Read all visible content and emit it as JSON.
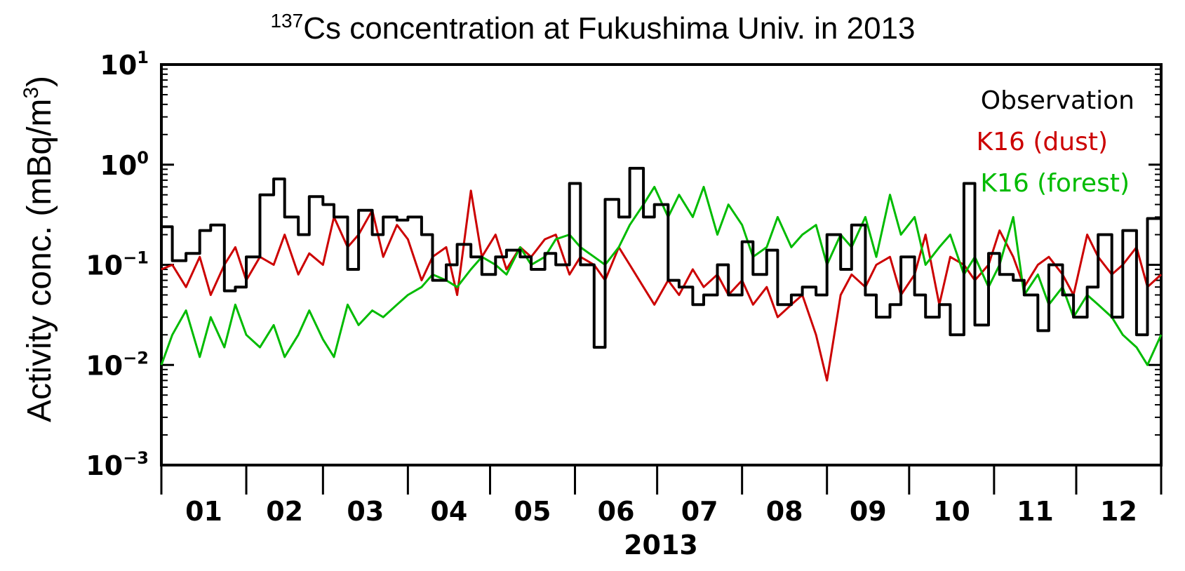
{
  "chart_data": {
    "type": "line",
    "title_prefix": "137",
    "title_main": "Cs concentration at Fukushima Univ. in 2013",
    "ylabel": "Activity conc. (mBq/m",
    "ylabel_sup": "3",
    "ylabel_close": ")",
    "xlabel": "2013",
    "y_scale": "log",
    "ylim": [
      0.001,
      10
    ],
    "y_ticks": [
      {
        "base": "10",
        "exp": "1",
        "value": 10
      },
      {
        "base": "10",
        "exp": "0",
        "value": 1
      },
      {
        "base": "10",
        "exp": "−1",
        "value": 0.1
      },
      {
        "base": "10",
        "exp": "−2",
        "value": 0.01
      },
      {
        "base": "10",
        "exp": "−3",
        "value": 0.001
      }
    ],
    "x_ticks": [
      "01",
      "02",
      "03",
      "04",
      "05",
      "06",
      "07",
      "08",
      "09",
      "10",
      "11",
      "12"
    ],
    "xlim_days": [
      0,
      365
    ],
    "legend_position": "top-right",
    "colors": {
      "observation": "#000000",
      "dust": "#cc0000",
      "forest": "#00bb00"
    },
    "series": [
      {
        "name": "Observation",
        "style": "step",
        "x": [
          0,
          4,
          9,
          14,
          18,
          23,
          27,
          31,
          36,
          41,
          45,
          50,
          54,
          59,
          63,
          68,
          72,
          77,
          81,
          86,
          90,
          95,
          99,
          104,
          108,
          113,
          117,
          122,
          126,
          131,
          135,
          140,
          144,
          149,
          153,
          158,
          162,
          167,
          171,
          176,
          180,
          185,
          189,
          194,
          198,
          203,
          207,
          212,
          216,
          221,
          225,
          230,
          234,
          239,
          243,
          248,
          252,
          257,
          261,
          266,
          270,
          275,
          279,
          284,
          288,
          293,
          297,
          302,
          306,
          311,
          315,
          320,
          324,
          329,
          333,
          338,
          342,
          347,
          351,
          356,
          360,
          365
        ],
        "values": [
          0.24,
          0.11,
          0.13,
          0.22,
          0.25,
          0.055,
          0.06,
          0.12,
          0.5,
          0.72,
          0.3,
          0.2,
          0.48,
          0.4,
          0.3,
          0.09,
          0.35,
          0.2,
          0.3,
          0.28,
          0.3,
          0.2,
          0.07,
          0.1,
          0.16,
          0.12,
          0.08,
          0.12,
          0.14,
          0.12,
          0.09,
          0.13,
          0.1,
          0.65,
          0.1,
          0.015,
          0.45,
          0.3,
          0.92,
          0.3,
          0.4,
          0.07,
          0.06,
          0.04,
          0.05,
          0.1,
          0.05,
          0.17,
          0.08,
          0.14,
          0.04,
          0.05,
          0.06,
          0.05,
          0.2,
          0.09,
          0.25,
          0.05,
          0.03,
          0.04,
          0.12,
          0.05,
          0.03,
          0.04,
          0.02,
          0.65,
          0.025,
          0.13,
          0.08,
          0.07,
          0.05,
          0.022,
          0.1,
          0.05,
          0.03,
          0.06,
          0.2,
          0.03,
          0.22,
          0.02,
          0.29,
          0.13
        ]
      },
      {
        "name": "K16 (dust)",
        "style": "line",
        "x": [
          0,
          4,
          9,
          14,
          18,
          23,
          27,
          31,
          36,
          41,
          45,
          50,
          54,
          59,
          63,
          68,
          72,
          77,
          81,
          86,
          90,
          95,
          99,
          104,
          108,
          113,
          117,
          122,
          126,
          131,
          135,
          140,
          144,
          149,
          153,
          158,
          162,
          167,
          171,
          176,
          180,
          185,
          189,
          194,
          198,
          203,
          207,
          212,
          216,
          221,
          225,
          230,
          234,
          239,
          243,
          248,
          252,
          257,
          261,
          266,
          270,
          275,
          279,
          284,
          288,
          293,
          297,
          302,
          306,
          311,
          315,
          320,
          324,
          329,
          333,
          338,
          342,
          347,
          351,
          356,
          360,
          365
        ],
        "values": [
          0.09,
          0.1,
          0.06,
          0.12,
          0.05,
          0.1,
          0.15,
          0.07,
          0.12,
          0.1,
          0.2,
          0.08,
          0.13,
          0.1,
          0.3,
          0.15,
          0.2,
          0.35,
          0.12,
          0.25,
          0.18,
          0.07,
          0.12,
          0.15,
          0.05,
          0.55,
          0.12,
          0.2,
          0.09,
          0.15,
          0.12,
          0.18,
          0.2,
          0.08,
          0.12,
          0.1,
          0.07,
          0.15,
          0.1,
          0.06,
          0.04,
          0.07,
          0.05,
          0.09,
          0.06,
          0.08,
          0.05,
          0.07,
          0.04,
          0.06,
          0.03,
          0.04,
          0.05,
          0.02,
          0.007,
          0.05,
          0.08,
          0.06,
          0.1,
          0.12,
          0.05,
          0.08,
          0.2,
          0.04,
          0.12,
          0.1,
          0.07,
          0.1,
          0.22,
          0.12,
          0.06,
          0.1,
          0.12,
          0.08,
          0.05,
          0.2,
          0.12,
          0.08,
          0.1,
          0.15,
          0.06,
          0.08
        ]
      },
      {
        "name": "K16 (forest)",
        "style": "line",
        "x": [
          0,
          4,
          9,
          14,
          18,
          23,
          27,
          31,
          36,
          41,
          45,
          50,
          54,
          59,
          63,
          68,
          72,
          77,
          81,
          86,
          90,
          95,
          99,
          104,
          108,
          113,
          117,
          122,
          126,
          131,
          135,
          140,
          144,
          149,
          153,
          158,
          162,
          167,
          171,
          176,
          180,
          185,
          189,
          194,
          198,
          203,
          207,
          212,
          216,
          221,
          225,
          230,
          234,
          239,
          243,
          248,
          252,
          257,
          261,
          266,
          270,
          275,
          279,
          284,
          288,
          293,
          297,
          302,
          306,
          311,
          315,
          320,
          324,
          329,
          333,
          338,
          342,
          347,
          351,
          356,
          360,
          365
        ],
        "values": [
          0.01,
          0.02,
          0.035,
          0.012,
          0.03,
          0.015,
          0.04,
          0.02,
          0.015,
          0.025,
          0.012,
          0.02,
          0.035,
          0.018,
          0.012,
          0.04,
          0.025,
          0.035,
          0.03,
          0.04,
          0.05,
          0.06,
          0.08,
          0.07,
          0.06,
          0.09,
          0.12,
          0.1,
          0.08,
          0.15,
          0.1,
          0.12,
          0.18,
          0.2,
          0.15,
          0.12,
          0.1,
          0.15,
          0.25,
          0.4,
          0.6,
          0.3,
          0.5,
          0.3,
          0.6,
          0.2,
          0.4,
          0.25,
          0.12,
          0.15,
          0.3,
          0.15,
          0.2,
          0.25,
          0.1,
          0.2,
          0.15,
          0.3,
          0.12,
          0.5,
          0.2,
          0.3,
          0.1,
          0.15,
          0.2,
          0.08,
          0.12,
          0.06,
          0.1,
          0.3,
          0.05,
          0.08,
          0.04,
          0.06,
          0.03,
          0.05,
          0.04,
          0.03,
          0.02,
          0.015,
          0.01,
          0.02
        ]
      }
    ]
  }
}
